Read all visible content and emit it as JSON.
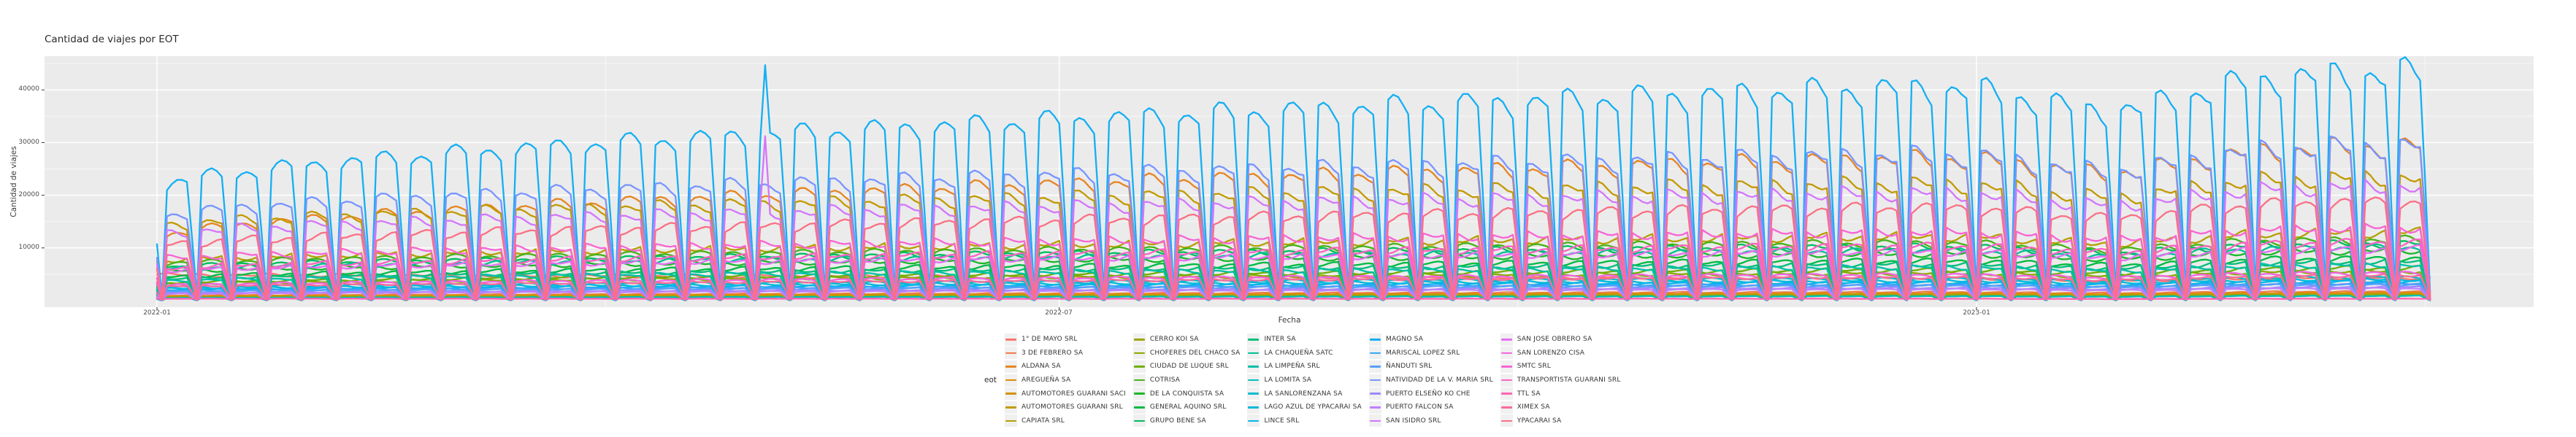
{
  "title": "Cantidad de viajes por EOT",
  "axes": {
    "x_label": "Fecha",
    "y_label": "Cantidad de viajes",
    "x_ticks": [
      "2022-01",
      "2022-07",
      "2023-01"
    ],
    "y_ticks": [
      "40000",
      "30000",
      "20000",
      "10000"
    ]
  },
  "legend": {
    "title": "eot"
  },
  "panel": {
    "background": "#EBEBEB",
    "grid_major_color": "#FFFFFF",
    "grid_minor_color": "#F7F7F7",
    "tick_color": "#333333"
  },
  "chart_data": {
    "type": "line",
    "title": "Cantidad de viajes por EOT",
    "xlabel": "Fecha",
    "ylabel": "Cantidad de viajes",
    "x_range": [
      "2022-01-01",
      "2023-04-01"
    ],
    "x_tick_labels": [
      "2022-01",
      "2022-07",
      "2023-01"
    ],
    "y_tick_values": [
      10000,
      20000,
      30000,
      40000
    ],
    "ylim": [
      0,
      46500
    ],
    "grid": true,
    "legend_position": "bottom",
    "pattern": {
      "description": "Daily trip counts per operator. Mon-Fri plateau at the weekday level (interpolated from weekday_level_start to weekday_level_end), Saturdays drop to ~55%, Sundays to ~4% (deep weekly V dips). A seasonal dip (~13%) occurs around Jan-Feb 2023.",
      "days": 457,
      "start_date": "2022-01-01",
      "start_day_of_week": "Saturday",
      "growth_exponent": 0.6,
      "saturday_factor": 0.55,
      "sunday_factor": 0.04,
      "wiggle_amplitudes": [
        0.045,
        0.035
      ],
      "jan2023_dip": {
        "center_day": 392,
        "depth": 0.13,
        "width_days": 20
      }
    },
    "series": [
      {
        "name": "1° DE MAYO SRL",
        "color": "#F8766D",
        "weekday_level_start": 4900,
        "weekday_level_end": 4300,
        "weekend_dips": false
      },
      {
        "name": "3 DE FEBRERO SA",
        "color": "#EF7E48",
        "weekday_level_start": 900,
        "weekday_level_end": 1700,
        "weekend_dips": true
      },
      {
        "name": "ALDANA SA",
        "color": "#E68522",
        "weekday_level_start": 11800,
        "weekday_level_end": 29200,
        "weekend_dips": true
      },
      {
        "name": "AREGUEÑA SA",
        "color": "#DD8D00",
        "weekday_level_start": 800,
        "weekday_level_end": 1500,
        "weekend_dips": true
      },
      {
        "name": "AUTOMOTORES GUARANI SACI",
        "color": "#D09300",
        "weekday_level_start": 700,
        "weekday_level_end": 1300,
        "weekend_dips": true
      },
      {
        "name": "AUTOMOTORES GUARANI SRL",
        "color": "#C29A00",
        "weekday_level_start": 13800,
        "weekday_level_end": 23500,
        "weekend_dips": true
      },
      {
        "name": "CAPIATA SRL",
        "color": "#B4A000",
        "weekday_level_start": 7500,
        "weekday_level_end": 13000,
        "weekend_dips": true
      },
      {
        "name": "CERRO KOI SA",
        "color": "#9FA500",
        "weekday_level_start": 600,
        "weekday_level_end": 1100,
        "weekend_dips": true
      },
      {
        "name": "CHOFERES DEL CHACO SA",
        "color": "#8BAA00",
        "weekday_level_start": 3000,
        "weekday_level_end": 5600,
        "weekend_dips": true
      },
      {
        "name": "CIUDAD DE LUQUE SRL",
        "color": "#71AF05",
        "weekday_level_start": 3300,
        "weekday_level_end": 6200,
        "weekend_dips": true
      },
      {
        "name": "COTRISA",
        "color": "#47B318",
        "weekday_level_start": 6800,
        "weekday_level_end": 11500,
        "weekend_dips": true
      },
      {
        "name": "DE LA CONQUISTA SA",
        "color": "#1CB72B",
        "weekday_level_start": 5400,
        "weekday_level_end": 9500,
        "weekend_dips": true
      },
      {
        "name": "GENERAL AQUINO SRL",
        "color": "#00BB41",
        "weekday_level_start": 4400,
        "weekday_level_end": 8000,
        "weekend_dips": true
      },
      {
        "name": "GRUPO BENE SA",
        "color": "#00BD5E",
        "weekday_level_start": 6200,
        "weekday_level_end": 10800,
        "weekend_dips": true
      },
      {
        "name": "INTER SA",
        "color": "#00BF7A",
        "weekday_level_start": 4000,
        "weekday_level_end": 7400,
        "weekend_dips": true
      },
      {
        "name": "LA CHAQUEÑA SATC",
        "color": "#00C093",
        "weekday_level_start": 5800,
        "weekday_level_end": 10000,
        "weekend_dips": true
      },
      {
        "name": "LA LIMPEÑA SRL",
        "color": "#00C0A7",
        "weekday_level_start": 3600,
        "weekday_level_end": 6800,
        "weekend_dips": true
      },
      {
        "name": "LA LOMITA SA",
        "color": "#00BFBA",
        "weekday_level_start": 500,
        "weekday_level_end": 900,
        "weekend_dips": true
      },
      {
        "name": "LA SANLORENZANA SA",
        "color": "#00BDCC",
        "weekday_level_start": 2400,
        "weekday_level_end": 4400,
        "weekend_dips": true
      },
      {
        "name": "LAGO AZUL DE YPACARAI SA",
        "color": "#00B9DB",
        "weekday_level_start": 2200,
        "weekday_level_end": 4000,
        "weekend_dips": true
      },
      {
        "name": "LINCE SRL",
        "color": "#00B6EA",
        "weekday_level_start": 2000,
        "weekday_level_end": 3600,
        "weekend_dips": true
      },
      {
        "name": "MAGNO SA",
        "color": "#13AFF3",
        "weekday_level_start": 21000,
        "weekday_level_end": 43000,
        "weekend_dips": true,
        "spikes": [
          {
            "day": 122,
            "value": 44700
          }
        ]
      },
      {
        "name": "MARISCAL LOPEZ SRL",
        "color": "#35A7F8",
        "weekday_level_start": 1800,
        "weekday_level_end": 3300,
        "weekend_dips": true
      },
      {
        "name": "ÑANDUTI SRL",
        "color": "#569FFE",
        "weekday_level_start": 1600,
        "weekday_level_end": 3000,
        "weekend_dips": true
      },
      {
        "name": "NATIVIDAD DE LA V. MARIA SRL",
        "color": "#7895FF",
        "weekday_level_start": 15500,
        "weekday_level_end": 29400,
        "weekend_dips": true
      },
      {
        "name": "PUERTO ELSEÑO KO CHE",
        "color": "#9B8AFF",
        "weekday_level_start": 1400,
        "weekday_level_end": 2600,
        "weekend_dips": true
      },
      {
        "name": "PUERTO FALCON SA",
        "color": "#BE7FFF",
        "weekday_level_start": 1200,
        "weekday_level_end": 2300,
        "weekend_dips": true
      },
      {
        "name": "SAN ISIDRO SRL",
        "color": "#D376FA",
        "weekday_level_start": 12300,
        "weekday_level_end": 21800,
        "weekend_dips": true,
        "spikes": [
          {
            "day": 122,
            "value": 31200
          }
        ]
      },
      {
        "name": "SAN JOSE OBRERO SA",
        "color": "#E36EF4",
        "weekday_level_start": 5600,
        "weekday_level_end": 9800,
        "weekend_dips": true
      },
      {
        "name": "SAN LORENZO CISA",
        "color": "#F265E5",
        "weekday_level_start": 2800,
        "weekday_level_end": 5200,
        "weekend_dips": true
      },
      {
        "name": "SMTC SRL",
        "color": "#F864D4",
        "weekday_level_start": 7800,
        "weekday_level_end": 14000,
        "weekend_dips": true
      },
      {
        "name": "TRANSPORTISTA GUARANI SRL",
        "color": "#FB64C3",
        "weekday_level_start": 6000,
        "weekday_level_end": 11000,
        "weekend_dips": true
      },
      {
        "name": "TTL SA",
        "color": "#FF64B2",
        "weekday_level_start": 350,
        "weekday_level_end": 350,
        "weekend_dips": false
      },
      {
        "name": "XIMEX SA",
        "color": "#FD6A9B",
        "weekday_level_start": 2600,
        "weekday_level_end": 4800,
        "weekend_dips": true
      },
      {
        "name": "YPACARAI SA",
        "color": "#FA7084",
        "weekday_level_start": 10300,
        "weekday_level_end": 18600,
        "weekend_dips": true
      }
    ]
  }
}
